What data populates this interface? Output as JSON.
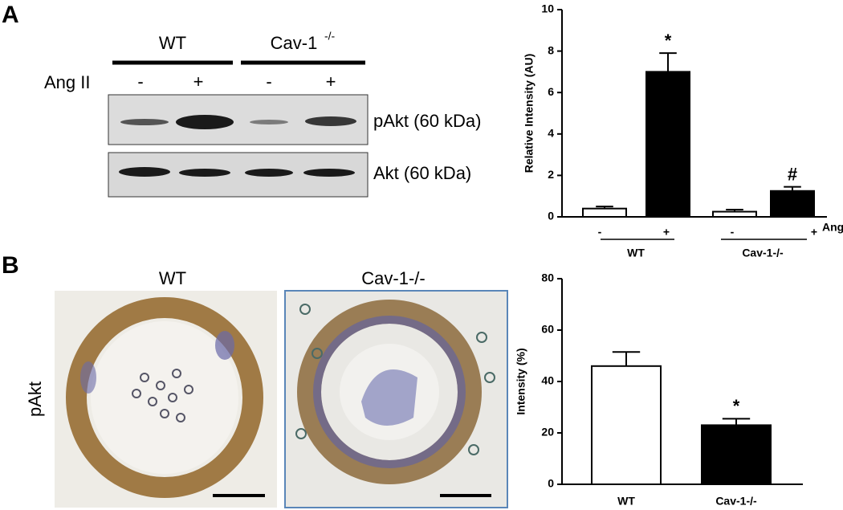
{
  "panels": {
    "a": "A",
    "b": "B"
  },
  "blot": {
    "groups": [
      {
        "name": "WT"
      },
      {
        "name": "Cav-1",
        "superscript": "-/-"
      }
    ],
    "treatment": "Ang II",
    "lanes": [
      "-",
      "+",
      "-",
      "+"
    ],
    "rows": [
      "pAkt (60 kDa)",
      "Akt (60 kDa)"
    ]
  },
  "histology": {
    "columns": [
      "WT",
      "Cav-1-/-"
    ],
    "row_label": "pAkt"
  },
  "chart_data": [
    {
      "type": "bar",
      "y_label": "Relative Intensity (AU)",
      "x_label": "Ang II",
      "categories": [
        "-",
        "+",
        "-",
        "+"
      ],
      "groups": [
        "WT",
        "Cav-1-/-"
      ],
      "values": [
        0.4,
        7.0,
        0.25,
        1.25
      ],
      "errors": [
        0.1,
        0.9,
        0.1,
        0.2
      ],
      "colors": [
        "#ffffff",
        "#000000",
        "#ffffff",
        "#000000"
      ],
      "annotations": [
        null,
        "*",
        null,
        "#"
      ],
      "ylim": [
        0,
        10
      ],
      "yticks": [
        0,
        2,
        4,
        6,
        8,
        10
      ]
    },
    {
      "type": "bar",
      "y_label": "Intensity (%)",
      "categories": [
        "WT",
        "Cav-1-/-"
      ],
      "values": [
        46,
        23
      ],
      "errors": [
        5.5,
        2.5
      ],
      "colors": [
        "#ffffff",
        "#000000"
      ],
      "annotations": [
        null,
        "*"
      ],
      "ylim": [
        0,
        80
      ],
      "yticks": [
        0,
        20,
        40,
        60,
        80
      ]
    }
  ]
}
